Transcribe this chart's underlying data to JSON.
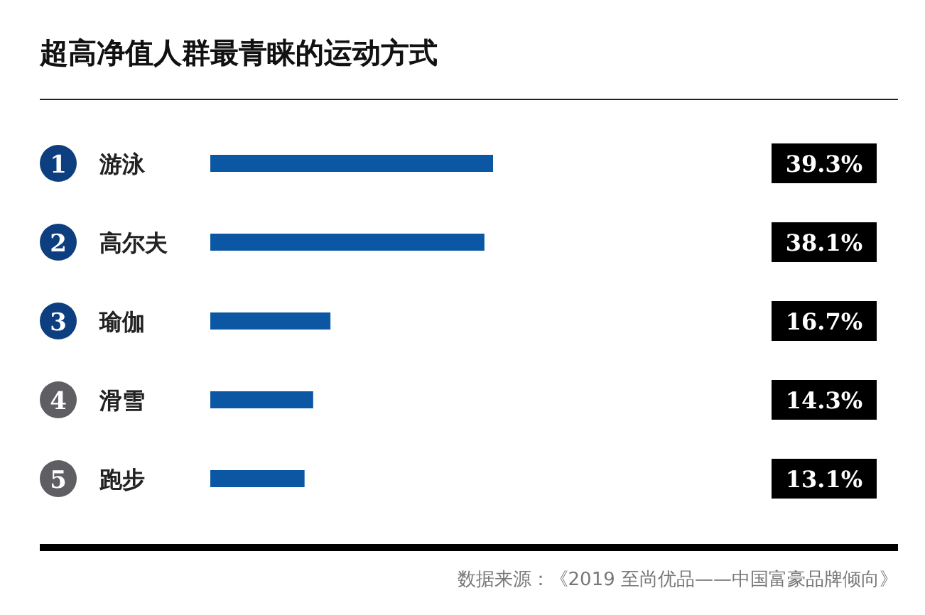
{
  "chart_data": {
    "type": "bar",
    "orientation": "horizontal",
    "title": "超高净值人群最青睐的运动方式",
    "categories": [
      "游泳",
      "高尔夫",
      "瑜伽",
      "滑雪",
      "跑步"
    ],
    "values": [
      39.3,
      38.1,
      16.7,
      14.3,
      13.1
    ],
    "value_labels": [
      "39.3%",
      "38.1%",
      "16.7%",
      "14.3%",
      "13.1%"
    ],
    "color": "#0b57a4",
    "annotations": [
      "1",
      "2",
      "3",
      "4",
      "5",
      "数据来源：《2019 至尚优品——中国富豪品牌倾向》"
    ]
  }
}
